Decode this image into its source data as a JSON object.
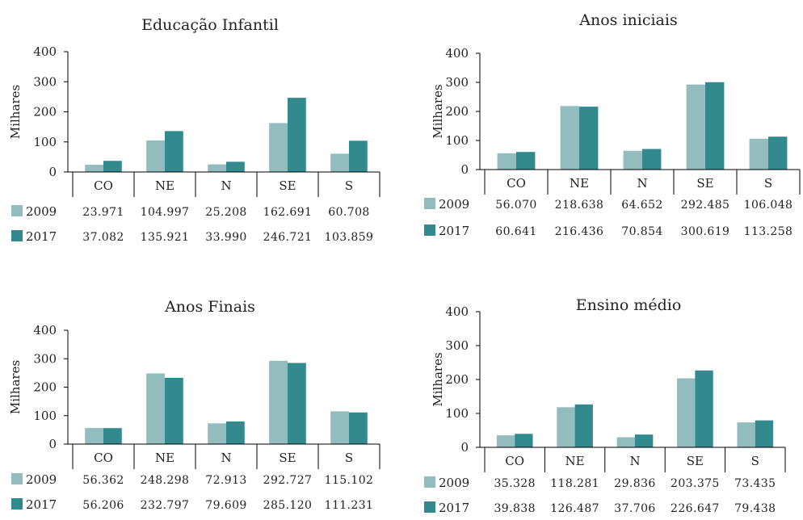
{
  "colors": {
    "series_2009": "#93BCBF",
    "series_2017": "#338A8E",
    "axis": "#000000"
  },
  "chart_data": [
    {
      "type": "bar",
      "title": "Educação Infantil",
      "ylabel": "Milhares",
      "ylim": [
        0,
        400
      ],
      "yticks": [
        "0",
        "100",
        "200",
        "300",
        "400"
      ],
      "categories": [
        "CO",
        "NE",
        "N",
        "SE",
        "S"
      ],
      "series": [
        {
          "name": "2009",
          "values": [
            23.971,
            104.997,
            25.208,
            162.691,
            60.708
          ],
          "labels": [
            "23.971",
            "104.997",
            "25.208",
            "162.691",
            "60.708"
          ]
        },
        {
          "name": "2017",
          "values": [
            37.082,
            135.921,
            33.99,
            246.721,
            103.859
          ],
          "labels": [
            "37.082",
            "135.921",
            "33.990",
            "246.721",
            "103.859"
          ]
        }
      ]
    },
    {
      "type": "bar",
      "title": "Anos iniciais",
      "ylabel": "Milhares",
      "ylim": [
        0,
        400
      ],
      "yticks": [
        "0",
        "100",
        "200",
        "300",
        "400"
      ],
      "categories": [
        "CO",
        "NE",
        "N",
        "SE",
        "S"
      ],
      "series": [
        {
          "name": "2009",
          "values": [
            56.07,
            218.638,
            64.652,
            292.485,
            106.048
          ],
          "labels": [
            "56.070",
            "218.638",
            "64.652",
            "292.485",
            "106.048"
          ]
        },
        {
          "name": "2017",
          "values": [
            60.641,
            216.436,
            70.854,
            300.619,
            113.258
          ],
          "labels": [
            "60.641",
            "216.436",
            "70.854",
            "300.619",
            "113.258"
          ]
        }
      ]
    },
    {
      "type": "bar",
      "title": "Anos Finais",
      "ylabel": "Milhares",
      "ylim": [
        0,
        400
      ],
      "yticks": [
        "0",
        "100",
        "200",
        "300",
        "400"
      ],
      "categories": [
        "CO",
        "NE",
        "N",
        "SE",
        "S"
      ],
      "series": [
        {
          "name": "2009",
          "values": [
            56.362,
            248.298,
            72.913,
            292.727,
            115.102
          ],
          "labels": [
            "56.362",
            "248.298",
            "72.913",
            "292.727",
            "115.102"
          ]
        },
        {
          "name": "2017",
          "values": [
            56.206,
            232.797,
            79.609,
            285.12,
            111.231
          ],
          "labels": [
            "56.206",
            "232.797",
            "79.609",
            "285.120",
            "111.231"
          ]
        }
      ]
    },
    {
      "type": "bar",
      "title": "Ensino médio",
      "ylabel": "Milhares",
      "ylim": [
        0,
        400
      ],
      "yticks": [
        "0",
        "100",
        "200",
        "300",
        "400"
      ],
      "categories": [
        "CO",
        "NE",
        "N",
        "SE",
        "S"
      ],
      "series": [
        {
          "name": "2009",
          "values": [
            35.328,
            118.281,
            29.836,
            203.375,
            73.435
          ],
          "labels": [
            "35.328",
            "118.281",
            "29.836",
            "203.375",
            "73.435"
          ]
        },
        {
          "name": "2017",
          "values": [
            39.838,
            126.487,
            37.706,
            226.647,
            79.438
          ],
          "labels": [
            "39.838",
            "126.487",
            "37.706",
            "226.647",
            "79.438"
          ]
        }
      ]
    }
  ]
}
